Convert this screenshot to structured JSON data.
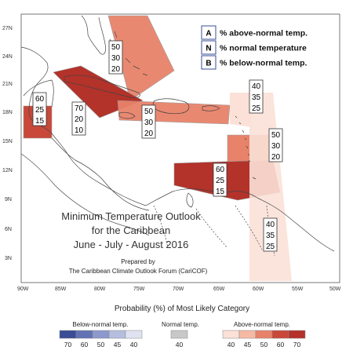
{
  "axes": {
    "lat_ticks": [
      "27N",
      "24N",
      "21N",
      "18N",
      "15N",
      "12N",
      "9N",
      "6N",
      "3N"
    ],
    "lon_ticks": [
      "90W",
      "85W",
      "80W",
      "75W",
      "70W",
      "65W",
      "60W",
      "55W",
      "50W"
    ]
  },
  "key": {
    "items": [
      {
        "letter": "A",
        "text": "% above-normal temp."
      },
      {
        "letter": "N",
        "text": "% normal temperature"
      },
      {
        "letter": "B",
        "text": "% below-normal temp."
      }
    ]
  },
  "title": {
    "line1": "Minimum Temperature Outlook",
    "line2": "for the Caribbean",
    "line3": "June - July - August 2016",
    "prepared": "Prepared by",
    "org": "The Caribbean Climate Outlook Forum (CariCOF)"
  },
  "regions": [
    {
      "name": "bahamas",
      "values": [
        "50",
        "30",
        "20"
      ],
      "color": "#e8826a"
    },
    {
      "name": "belize",
      "values": [
        "60",
        "25",
        "15"
      ],
      "color": "#c8483a"
    },
    {
      "name": "central-caribbean",
      "values": [
        "70",
        "20",
        "10"
      ],
      "color": "#b3322a"
    },
    {
      "name": "greater-antilles",
      "values": [
        "50",
        "30",
        "20"
      ],
      "color": "#e8826a"
    },
    {
      "name": "virgin-islands",
      "values": [
        "40",
        "35",
        "25"
      ],
      "color": "#fbe1d7"
    },
    {
      "name": "eastern-caribbean",
      "values": [
        "50",
        "30",
        "20"
      ],
      "color": "#e8826a"
    },
    {
      "name": "southern-caribbean",
      "values": [
        "60",
        "25",
        "15"
      ],
      "color": "#c8483a"
    },
    {
      "name": "guianas",
      "values": [
        "40",
        "35",
        "25"
      ],
      "color": "#fbe1d7"
    }
  ],
  "legend": {
    "title": "Probability (%) of Most Likely Category",
    "below_label": "Below-normal temp.",
    "normal_label": "Normal temp.",
    "above_label": "Above-normal temp.",
    "below_values": [
      "70",
      "60",
      "50",
      "45",
      "40"
    ],
    "normal_values": [
      "40"
    ],
    "above_values": [
      "40",
      "45",
      "50",
      "60",
      "70"
    ],
    "below_colors": [
      "#3a4d96",
      "#6272b4",
      "#8d99cc",
      "#b6bedf",
      "#dfe3f1"
    ],
    "normal_colors": [
      "#c8c8c8"
    ],
    "above_colors": [
      "#fbe1d7",
      "#f5b9a4",
      "#e8826a",
      "#c8483a",
      "#b3322a"
    ]
  }
}
